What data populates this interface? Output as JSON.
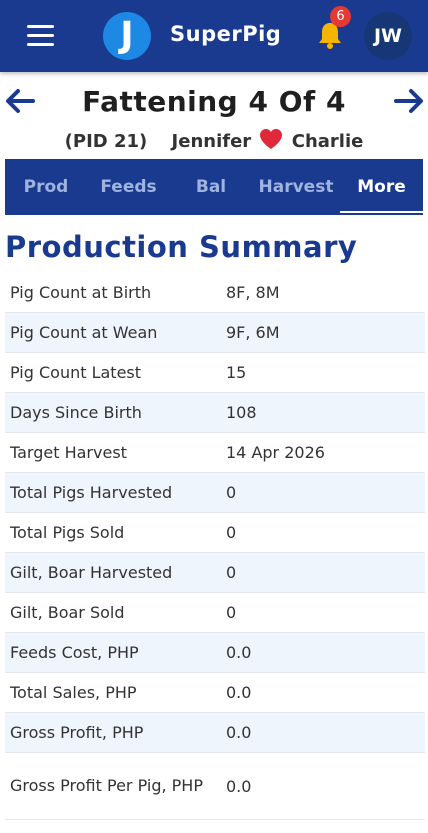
{
  "header": {
    "logo_letter": "J",
    "app_title": "SuperPig",
    "notification_count": "6",
    "user_initials": "JW"
  },
  "page": {
    "title": "Fattening 4 Of 4",
    "pid": "(PID 21)",
    "sow": "Jennifer",
    "boar": "Charlie"
  },
  "tabs": [
    {
      "label": "Prod"
    },
    {
      "label": "Feeds"
    },
    {
      "label": "Bal"
    },
    {
      "label": "Harvest"
    },
    {
      "label": "More",
      "active": true
    }
  ],
  "summary": {
    "title": "Production Summary",
    "rows": [
      {
        "label": "Pig Count at Birth",
        "value": "8F, 8M"
      },
      {
        "label": "Pig Count at Wean",
        "value": "9F, 6M"
      },
      {
        "label": "Pig Count Latest",
        "value": "15"
      },
      {
        "label": "Days Since Birth",
        "value": "108"
      },
      {
        "label": "Target Harvest",
        "value": "14 Apr 2026"
      },
      {
        "label": "Total Pigs Harvested",
        "value": "0"
      },
      {
        "label": "Total Pigs Sold",
        "value": "0"
      },
      {
        "label": "Gilt, Boar Harvested",
        "value": "0"
      },
      {
        "label": "Gilt, Boar Sold",
        "value": "0"
      },
      {
        "label": "Feeds Cost, PHP",
        "value": "0.0"
      },
      {
        "label": "Total Sales, PHP",
        "value": "0.0"
      },
      {
        "label": "Gross Profit, PHP",
        "value": "0.0"
      },
      {
        "label": "Gross Profit Per Pig, PHP",
        "value": "0.0"
      }
    ]
  },
  "colors": {
    "primary": "#1a3a8f",
    "logo_blue": "#1e88e5",
    "bell_yellow": "#f5b400",
    "badge_red": "#e53935",
    "heart_red": "#e0283a",
    "row_stripe": "#eef5fc"
  },
  "icons": {
    "menu": "hamburger-icon",
    "bell": "bell-icon",
    "prev": "arrow-left-icon",
    "next": "arrow-right-icon",
    "heart": "heart-icon"
  }
}
